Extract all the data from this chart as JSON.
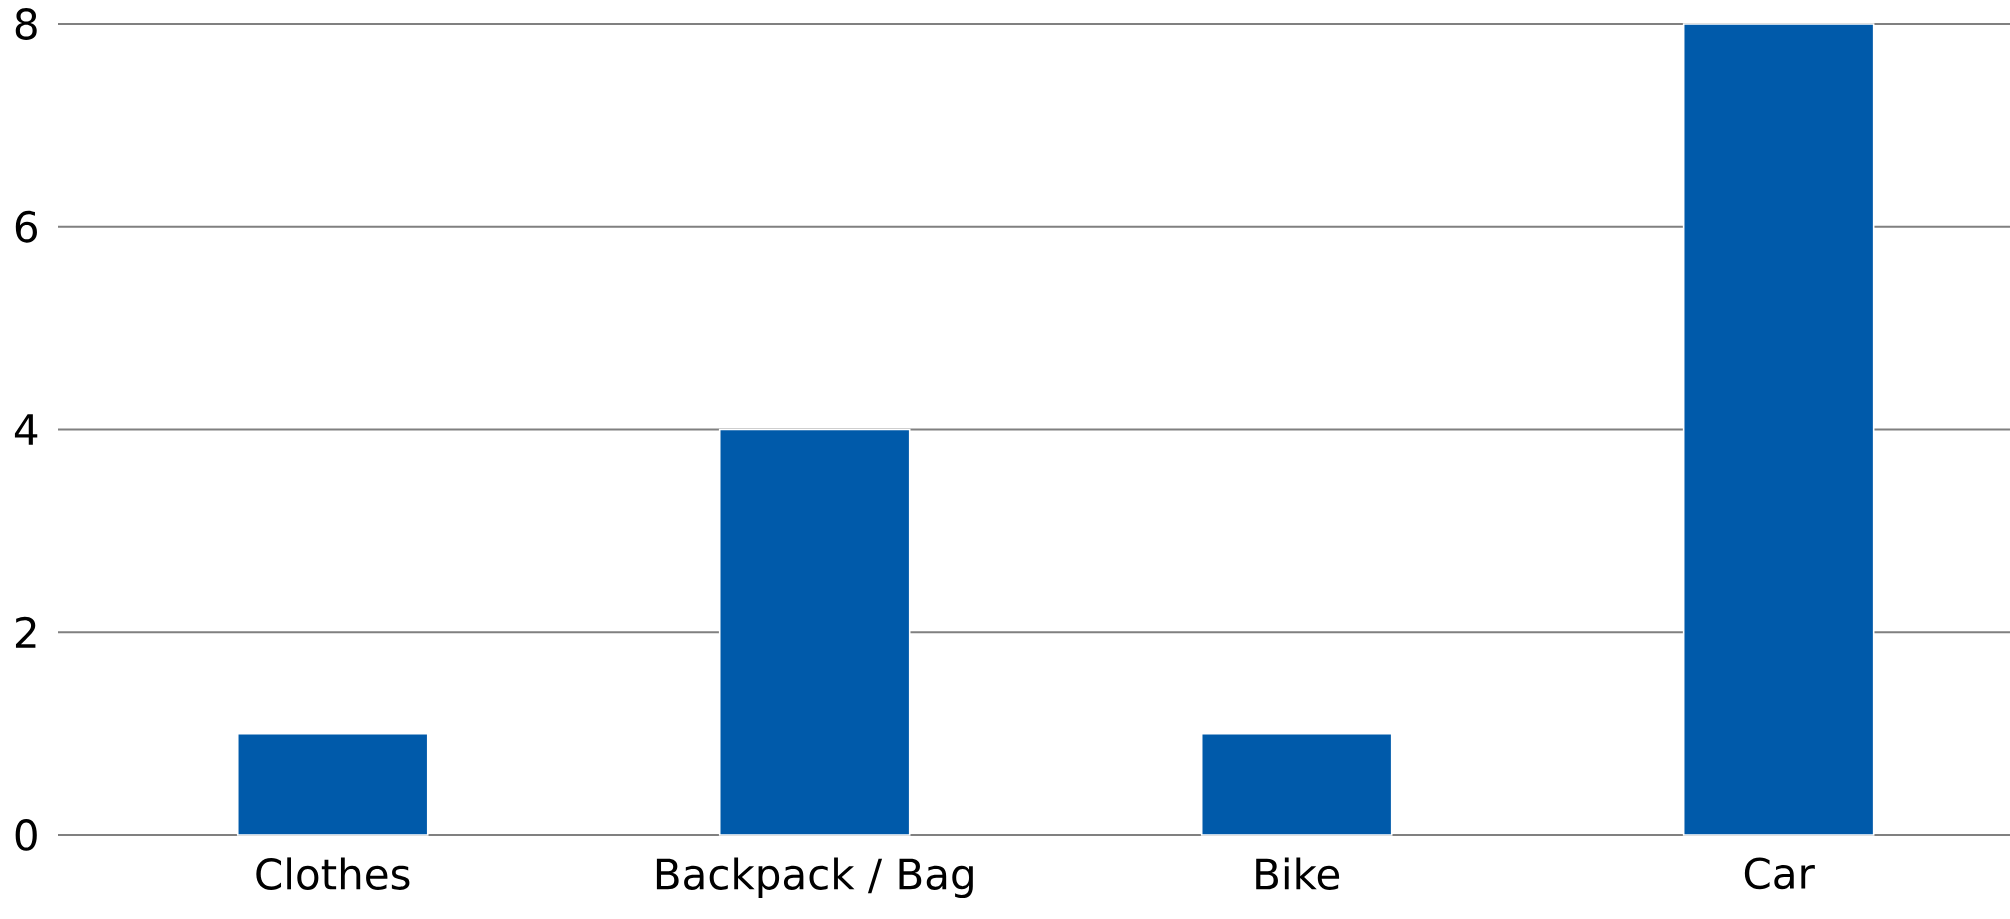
{
  "chart_data": {
    "type": "bar",
    "categories": [
      "Clothes",
      "Backpack / Bag",
      "Bike",
      "Car"
    ],
    "values": [
      1,
      4,
      1,
      8
    ],
    "color": "#005aaa",
    "ylim": [
      0,
      8
    ],
    "yticks": [
      0,
      2,
      4,
      6,
      8
    ],
    "grid": "y"
  }
}
